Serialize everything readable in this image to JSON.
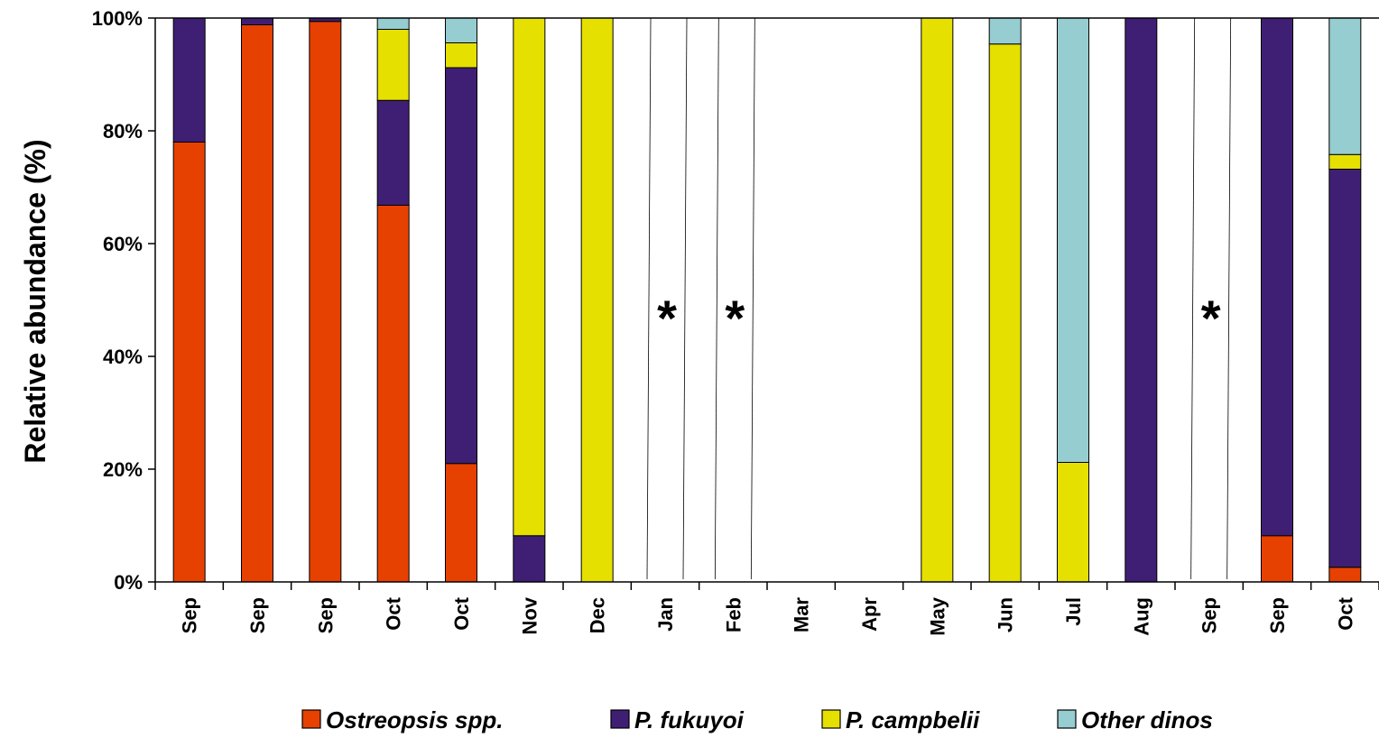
{
  "chart_data": {
    "type": "bar",
    "stacked": true,
    "percent_stacked": true,
    "ylabel": "Relative abundance (%)",
    "xlabel": "",
    "ylim": [
      0,
      100
    ],
    "y_ticks": [
      "0%",
      "20%",
      "40%",
      "60%",
      "80%",
      "100%"
    ],
    "categories": [
      "Sep",
      "Sep",
      "Sep",
      "Oct",
      "Oct",
      "Nov",
      "Dec",
      "Jan",
      "Feb",
      "Mar",
      "Apr",
      "May",
      "Jun",
      "Jul",
      "Aug",
      "Sep",
      "Sep",
      "Oct"
    ],
    "series": [
      {
        "name": "Ostreopsis spp.",
        "color": "#e64100",
        "values": [
          78,
          98.8,
          99.4,
          66.8,
          21,
          0,
          0,
          0,
          0,
          0,
          0,
          0,
          0,
          0,
          0,
          0,
          8.2,
          2.6
        ]
      },
      {
        "name": "P. fukuyoi",
        "color": "#3f1f74",
        "values": [
          22,
          1.2,
          0.6,
          18.6,
          70.2,
          8.2,
          0,
          0,
          0,
          0,
          0,
          0,
          0,
          0,
          100,
          0,
          91.8,
          70.6
        ]
      },
      {
        "name": "P. campbelii",
        "color": "#e6e000",
        "values": [
          0,
          0,
          0,
          12.6,
          4.4,
          91.8,
          100,
          0,
          0,
          0,
          0,
          100,
          95.4,
          21.2,
          0,
          0,
          0,
          2.6
        ]
      },
      {
        "name": "Other dinos",
        "color": "#96cdd1",
        "values": [
          0,
          0,
          0,
          2,
          4.4,
          0,
          0,
          0,
          0,
          0,
          0,
          0,
          4.6,
          78.8,
          0,
          0,
          0,
          24.2
        ]
      }
    ],
    "no_data_marker": "*",
    "no_data_categories": [
      7,
      8,
      15
    ],
    "grid": false,
    "legend_position": "bottom"
  }
}
